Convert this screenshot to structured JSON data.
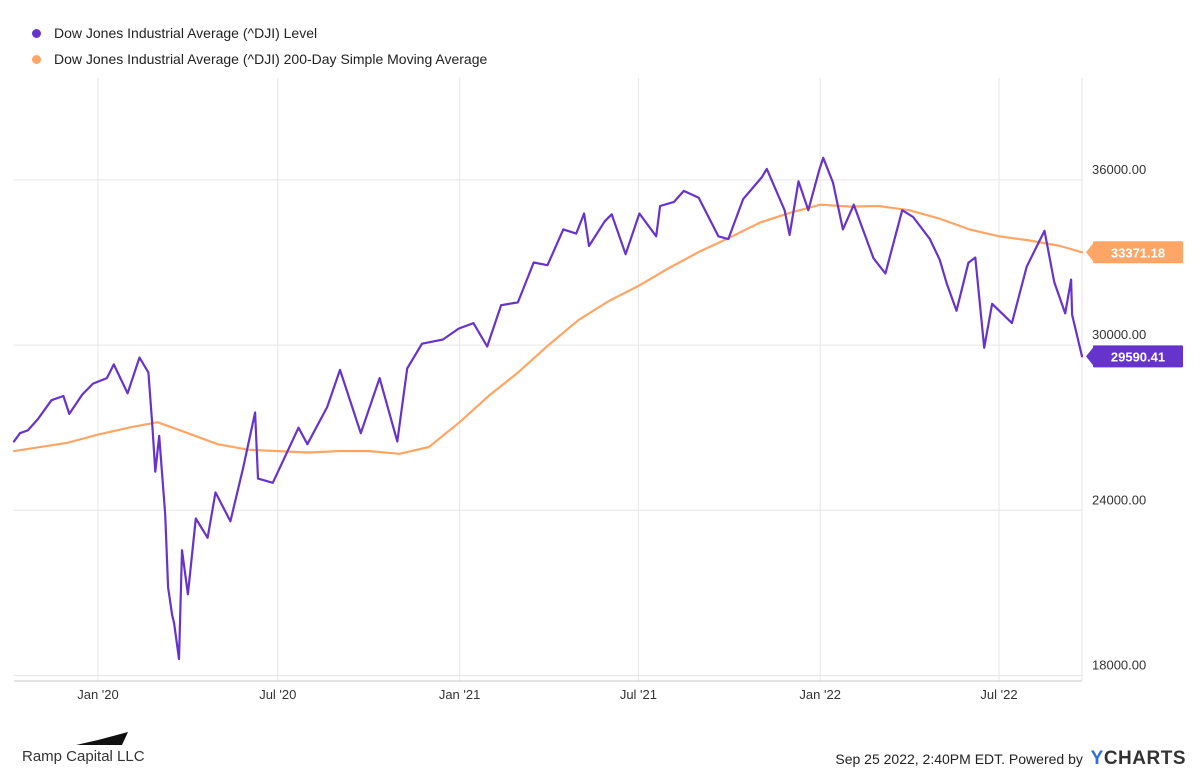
{
  "legend": [
    {
      "label": "Dow Jones Industrial Average (^DJI) Level",
      "color": "#6633cc"
    },
    {
      "label": "Dow Jones Industrial Average (^DJI) 200-Day Simple Moving Average",
      "color": "#ffa566"
    }
  ],
  "footer": {
    "brand": "Ramp Capital LLC",
    "source_text": "Sep 25 2022, 2:40PM EDT. Powered by",
    "ycharts_y": "Y",
    "ycharts_rest": "CHARTS"
  },
  "chart_data": {
    "type": "line",
    "x_ticks": [
      {
        "label": "Jan '20",
        "x": "2020-01-01"
      },
      {
        "label": "Jul '20",
        "x": "2020-07-01"
      },
      {
        "label": "Jan '21",
        "x": "2021-01-01"
      },
      {
        "label": "Jul '21",
        "x": "2021-07-01"
      },
      {
        "label": "Jan '22",
        "x": "2022-01-01"
      },
      {
        "label": "Jul '22",
        "x": "2022-07-01"
      }
    ],
    "y_ticks": [
      "18000.00",
      "24000.00",
      "30000.00",
      "36000.00"
    ],
    "xlim": [
      "2019-10-08",
      "2022-09-23"
    ],
    "ylim": [
      17800,
      39700
    ],
    "grid": true,
    "legend_position": "top-left",
    "end_labels": [
      {
        "series": "Dow Jones Industrial Average (^DJI) 200-Day Simple Moving Average",
        "label": "33371.18",
        "value": 33371.18,
        "color": "#ffa566"
      },
      {
        "series": "Dow Jones Industrial Average (^DJI) Level",
        "label": "29590.41",
        "value": 29590.41,
        "color": "#6633cc"
      }
    ],
    "series": [
      {
        "name": "Dow Jones Industrial Average (^DJI) Level",
        "color": "#6633cc",
        "points": [
          [
            "2019-10-08",
            26500
          ],
          [
            "2019-10-14",
            26800
          ],
          [
            "2019-10-22",
            26900
          ],
          [
            "2019-11-01",
            27300
          ],
          [
            "2019-11-15",
            28000
          ],
          [
            "2019-11-27",
            28150
          ],
          [
            "2019-12-03",
            27500
          ],
          [
            "2019-12-16",
            28200
          ],
          [
            "2019-12-27",
            28600
          ],
          [
            "2020-01-10",
            28800
          ],
          [
            "2020-01-17",
            29300
          ],
          [
            "2020-01-31",
            28250
          ],
          [
            "2020-02-12",
            29550
          ],
          [
            "2020-02-21",
            29000
          ],
          [
            "2020-02-25",
            27100
          ],
          [
            "2020-02-28",
            25400
          ],
          [
            "2020-03-03",
            26700
          ],
          [
            "2020-03-09",
            23850
          ],
          [
            "2020-03-12",
            21200
          ],
          [
            "2020-03-16",
            20200
          ],
          [
            "2020-03-18",
            19900
          ],
          [
            "2020-03-23",
            18600
          ],
          [
            "2020-03-26",
            22550
          ],
          [
            "2020-04-01",
            20950
          ],
          [
            "2020-04-09",
            23700
          ],
          [
            "2020-04-21",
            23000
          ],
          [
            "2020-04-29",
            24650
          ],
          [
            "2020-05-14",
            23600
          ],
          [
            "2020-05-27",
            25550
          ],
          [
            "2020-06-08",
            27550
          ],
          [
            "2020-06-11",
            25150
          ],
          [
            "2020-06-26",
            25000
          ],
          [
            "2020-07-09",
            26000
          ],
          [
            "2020-07-22",
            27000
          ],
          [
            "2020-07-31",
            26400
          ],
          [
            "2020-08-20",
            27750
          ],
          [
            "2020-09-02",
            29100
          ],
          [
            "2020-09-23",
            26800
          ],
          [
            "2020-10-12",
            28800
          ],
          [
            "2020-10-30",
            26500
          ],
          [
            "2020-11-09",
            29150
          ],
          [
            "2020-11-24",
            30050
          ],
          [
            "2020-12-15",
            30200
          ],
          [
            "2020-12-31",
            30600
          ],
          [
            "2021-01-15",
            30800
          ],
          [
            "2021-01-29",
            29950
          ],
          [
            "2021-02-12",
            31450
          ],
          [
            "2021-03-01",
            31550
          ],
          [
            "2021-03-17",
            33000
          ],
          [
            "2021-03-31",
            32900
          ],
          [
            "2021-04-16",
            34200
          ],
          [
            "2021-04-29",
            34050
          ],
          [
            "2021-05-07",
            34780
          ],
          [
            "2021-05-12",
            33600
          ],
          [
            "2021-05-28",
            34500
          ],
          [
            "2021-06-04",
            34750
          ],
          [
            "2021-06-18",
            33300
          ],
          [
            "2021-07-02",
            34780
          ],
          [
            "2021-07-19",
            33950
          ],
          [
            "2021-07-23",
            35050
          ],
          [
            "2021-08-06",
            35200
          ],
          [
            "2021-08-16",
            35600
          ],
          [
            "2021-08-31",
            35350
          ],
          [
            "2021-09-20",
            33950
          ],
          [
            "2021-09-30",
            33850
          ],
          [
            "2021-10-15",
            35300
          ],
          [
            "2021-11-03",
            36100
          ],
          [
            "2021-11-08",
            36400
          ],
          [
            "2021-11-26",
            34900
          ],
          [
            "2021-12-01",
            34000
          ],
          [
            "2021-12-10",
            35950
          ],
          [
            "2021-12-20",
            34900
          ],
          [
            "2021-12-31",
            36350
          ],
          [
            "2022-01-04",
            36800
          ],
          [
            "2022-01-14",
            35900
          ],
          [
            "2022-01-24",
            34200
          ],
          [
            "2022-02-04",
            35100
          ],
          [
            "2022-02-24",
            33150
          ],
          [
            "2022-03-08",
            32600
          ],
          [
            "2022-03-25",
            34900
          ],
          [
            "2022-04-05",
            34650
          ],
          [
            "2022-04-22",
            33850
          ],
          [
            "2022-05-02",
            33100
          ],
          [
            "2022-05-09",
            32250
          ],
          [
            "2022-05-19",
            31250
          ],
          [
            "2022-05-31",
            32990
          ],
          [
            "2022-06-07",
            33180
          ],
          [
            "2022-06-16",
            29900
          ],
          [
            "2022-06-24",
            31500
          ],
          [
            "2022-07-14",
            30800
          ],
          [
            "2022-07-29",
            32850
          ],
          [
            "2022-08-16",
            34150
          ],
          [
            "2022-08-26",
            32280
          ],
          [
            "2022-09-06",
            31150
          ],
          [
            "2022-09-12",
            32380
          ],
          [
            "2022-09-13",
            31100
          ],
          [
            "2022-09-23",
            29590.41
          ]
        ]
      },
      {
        "name": "Dow Jones Industrial Average (^DJI) 200-Day Simple Moving Average",
        "color": "#ffa566",
        "points": [
          [
            "2019-10-08",
            26150
          ],
          [
            "2019-12-01",
            26450
          ],
          [
            "2020-01-01",
            26750
          ],
          [
            "2020-02-01",
            27000
          ],
          [
            "2020-03-01",
            27200
          ],
          [
            "2020-04-01",
            26800
          ],
          [
            "2020-05-01",
            26400
          ],
          [
            "2020-06-01",
            26200
          ],
          [
            "2020-07-01",
            26150
          ],
          [
            "2020-08-01",
            26100
          ],
          [
            "2020-09-01",
            26150
          ],
          [
            "2020-10-01",
            26150
          ],
          [
            "2020-11-01",
            26050
          ],
          [
            "2020-12-01",
            26300
          ],
          [
            "2021-01-01",
            27200
          ],
          [
            "2021-02-01",
            28200
          ],
          [
            "2021-03-01",
            29000
          ],
          [
            "2021-04-01",
            30000
          ],
          [
            "2021-05-01",
            30900
          ],
          [
            "2021-06-01",
            31600
          ],
          [
            "2021-07-01",
            32150
          ],
          [
            "2021-08-01",
            32800
          ],
          [
            "2021-09-01",
            33400
          ],
          [
            "2021-10-01",
            33900
          ],
          [
            "2021-11-01",
            34450
          ],
          [
            "2021-12-01",
            34800
          ],
          [
            "2022-01-01",
            35100
          ],
          [
            "2022-02-01",
            35030
          ],
          [
            "2022-03-01",
            35050
          ],
          [
            "2022-04-01",
            34900
          ],
          [
            "2022-05-01",
            34600
          ],
          [
            "2022-06-01",
            34200
          ],
          [
            "2022-07-01",
            33950
          ],
          [
            "2022-08-01",
            33800
          ],
          [
            "2022-09-01",
            33600
          ],
          [
            "2022-09-23",
            33371.18
          ]
        ]
      }
    ]
  }
}
